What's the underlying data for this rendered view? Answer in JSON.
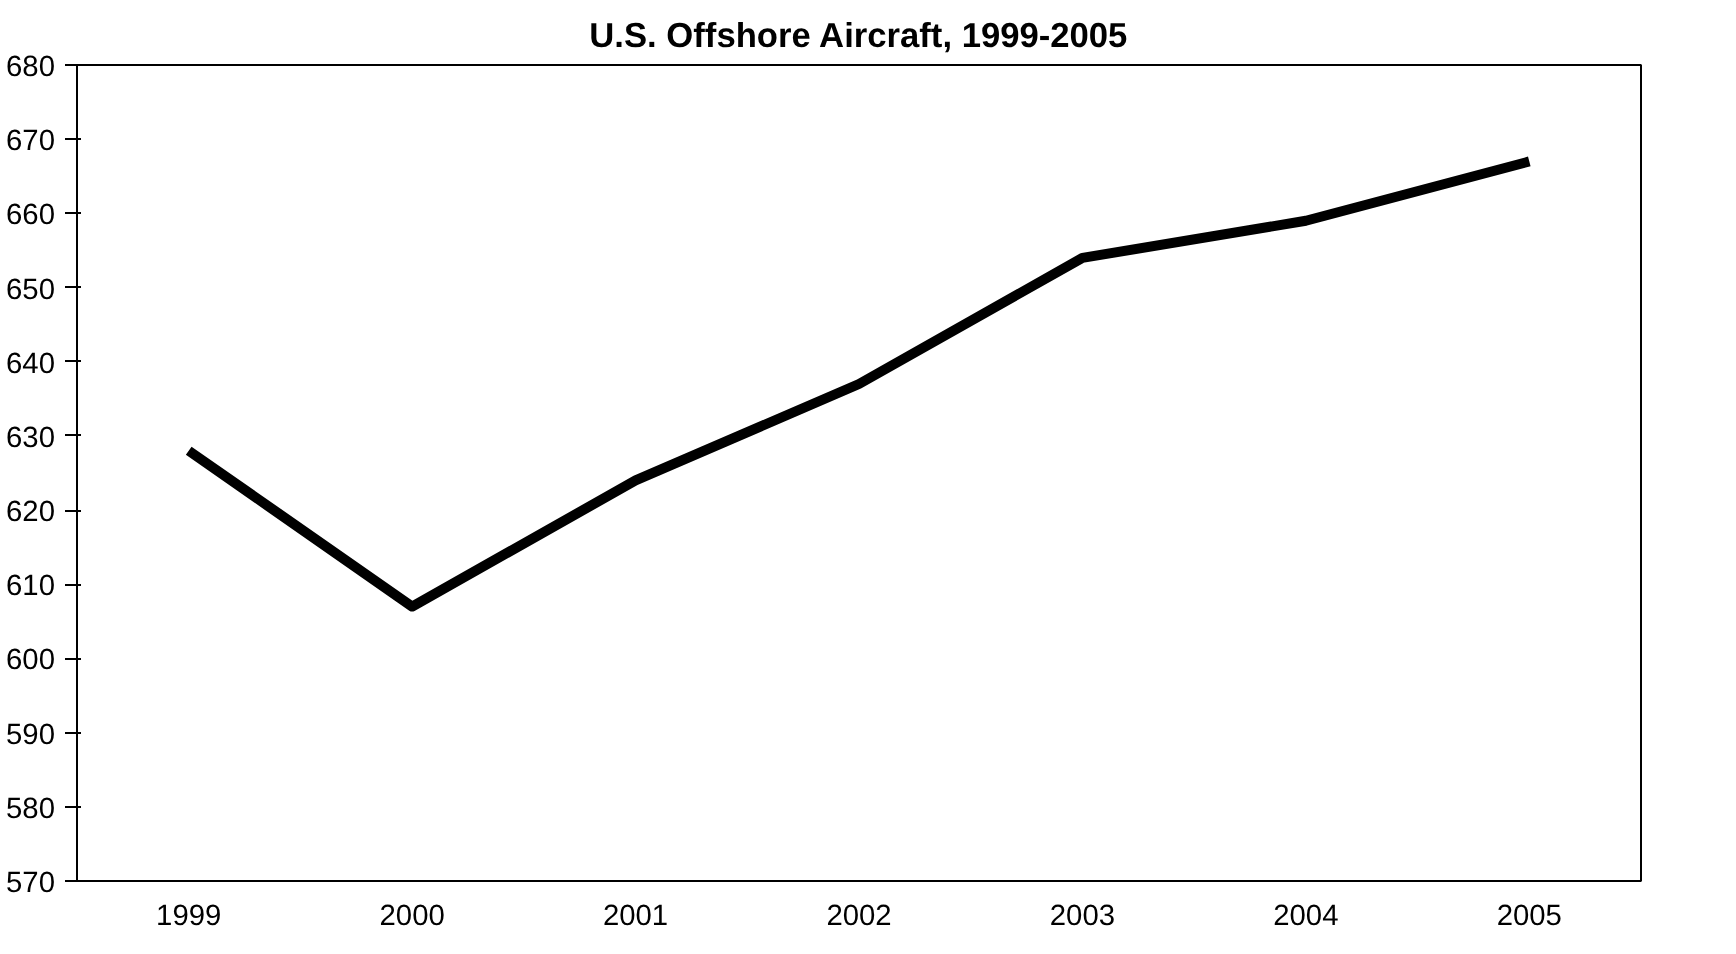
{
  "chart_data": {
    "type": "line",
    "title": "U.S. Offshore Aircraft, 1999-2005",
    "categories": [
      "1999",
      "2000",
      "2001",
      "2002",
      "2003",
      "2004",
      "2005"
    ],
    "series": [
      {
        "color": "#000000",
        "values": [
          628,
          607,
          624,
          637,
          654,
          659,
          667
        ]
      }
    ],
    "ylim": [
      570,
      680
    ],
    "yticks": [
      570,
      580,
      590,
      600,
      610,
      620,
      630,
      640,
      650,
      660,
      670,
      680
    ],
    "grid": false,
    "marker": "none",
    "line_style": "solid"
  }
}
